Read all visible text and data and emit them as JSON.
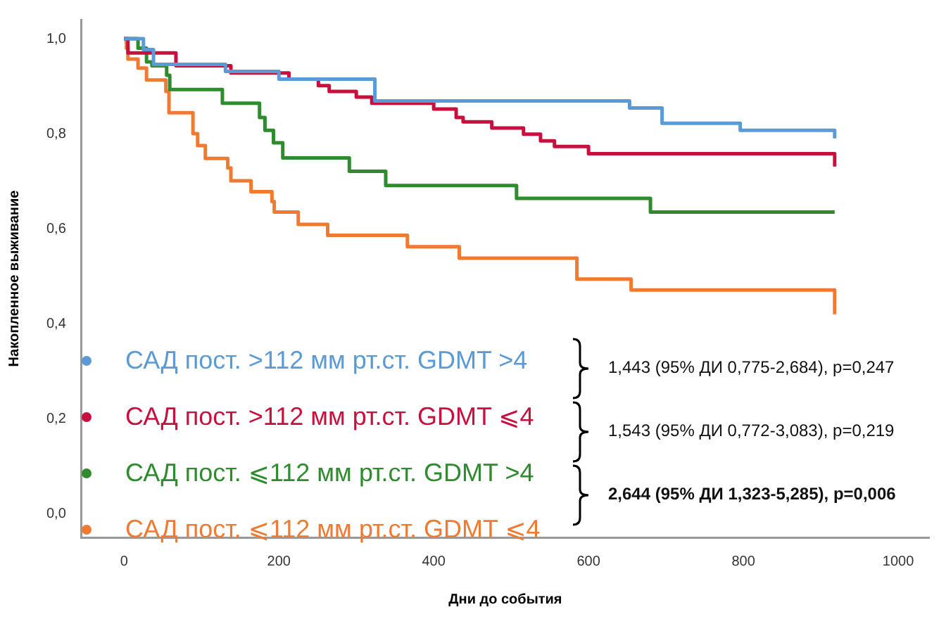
{
  "chart_data": {
    "type": "step",
    "xlabel": "Дни до события",
    "ylabel": "Накопленное выживание",
    "xlim": [
      -55,
      1040
    ],
    "xticks": [
      0,
      200,
      400,
      600,
      800,
      1000
    ],
    "ylim": [
      -0.05,
      1.04
    ],
    "yticks": [
      {
        "value": 0,
        "label": "0,0"
      },
      {
        "value": 0.2,
        "label": "0,2"
      },
      {
        "value": 0.4,
        "label": "0,4"
      },
      {
        "value": 0.6,
        "label": "0,6"
      },
      {
        "value": 0.8,
        "label": "0,8"
      },
      {
        "value": 1,
        "label": "1,0"
      }
    ],
    "grid": false,
    "legend": "bottom left",
    "line_style": "solid",
    "marker": "none",
    "series": [
      {
        "name": "САД пост. >112 мм рт.ст. GDMT >4",
        "color": "#5b9bd5",
        "x": [
          0,
          25,
          38,
          131,
          200,
          324,
          653,
          695,
          796,
          918
        ],
        "values": [
          1.0,
          0.977,
          0.946,
          0.931,
          0.915,
          0.869,
          0.854,
          0.822,
          0.807,
          0.79
        ]
      },
      {
        "name": "САД пост. >112 мм рт.ст. GDMT ⩽4",
        "color": "#c8103e",
        "x": [
          0,
          5,
          67,
          138,
          213,
          251,
          265,
          300,
          320,
          400,
          429,
          438,
          475,
          516,
          538,
          556,
          600,
          918
        ],
        "values": [
          1.0,
          0.97,
          0.943,
          0.928,
          0.915,
          0.901,
          0.889,
          0.877,
          0.864,
          0.852,
          0.834,
          0.825,
          0.812,
          0.799,
          0.785,
          0.773,
          0.758,
          0.731
        ]
      },
      {
        "name": "САД пост. ⩽112 мм рт.ст. GDMT >4",
        "color": "#2e8b2e",
        "x": [
          0,
          18,
          29,
          36,
          55,
          59,
          127,
          175,
          182,
          193,
          205,
          291,
          338,
          507,
          680,
          918
        ],
        "values": [
          1.0,
          0.98,
          0.951,
          0.943,
          0.923,
          0.893,
          0.864,
          0.834,
          0.807,
          0.781,
          0.749,
          0.721,
          0.691,
          0.664,
          0.635,
          0.635
        ]
      },
      {
        "name": "САД пост. ⩽112 мм рт.ст. GDMT ⩽4",
        "color": "#f07a32",
        "x": [
          0,
          3,
          5,
          18,
          29,
          54,
          58,
          89,
          95,
          105,
          134,
          138,
          164,
          191,
          194,
          225,
          263,
          366,
          433,
          585,
          655,
          918,
          918
        ],
        "values": [
          1.0,
          0.98,
          0.957,
          0.938,
          0.913,
          0.889,
          0.844,
          0.8,
          0.775,
          0.748,
          0.728,
          0.701,
          0.678,
          0.657,
          0.635,
          0.609,
          0.586,
          0.562,
          0.538,
          0.494,
          0.471,
          0.471,
          0.42
        ]
      }
    ],
    "annotations": [
      "1,443 (95% ДИ 0,775-2,684), p=0,247",
      "1,543 (95% ДИ 0,772-3,083), p=0,219",
      "2,644 (95% ДИ 1,323-5,285), p=0,006"
    ]
  }
}
